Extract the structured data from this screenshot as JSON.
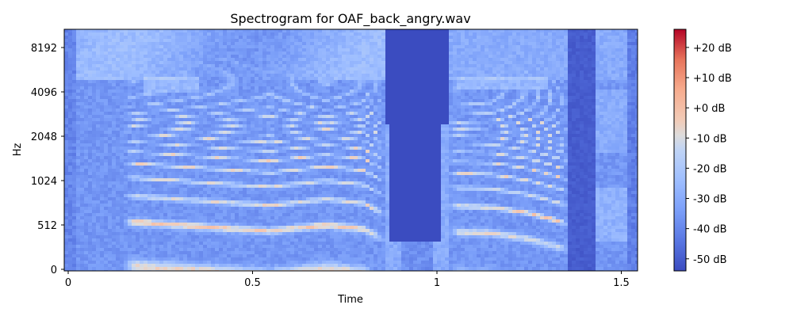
{
  "chart_data": {
    "type": "heatmap",
    "title": "Spectrogram for OAF_back_angry.wav",
    "xlabel": "Time",
    "ylabel": "Hz",
    "xlim": [
      0,
      1.55
    ],
    "x_ticks": [
      {
        "value": 0,
        "label": "0"
      },
      {
        "value": 0.5,
        "label": "0.5"
      },
      {
        "value": 1,
        "label": "1"
      },
      {
        "value": 1.5,
        "label": "1.5"
      }
    ],
    "y_scale": "log",
    "y_ticks": [
      {
        "value": 0,
        "label": "0"
      },
      {
        "value": 512,
        "label": "512"
      },
      {
        "value": 1024,
        "label": "1024"
      },
      {
        "value": 2048,
        "label": "2048"
      },
      {
        "value": 4096,
        "label": "4096"
      },
      {
        "value": 8192,
        "label": "8192"
      }
    ],
    "colorbar": {
      "range_db": [
        -54,
        26
      ],
      "ticks": [
        {
          "value": 20,
          "label": "+20 dB"
        },
        {
          "value": 10,
          "label": "+10 dB"
        },
        {
          "value": 0,
          "label": "+0 dB"
        },
        {
          "value": -10,
          "label": "-10 dB"
        },
        {
          "value": -20,
          "label": "-20 dB"
        },
        {
          "value": -30,
          "label": "-30 dB"
        },
        {
          "value": -40,
          "label": "-40 dB"
        },
        {
          "value": -50,
          "label": "-50 dB"
        }
      ],
      "colormap": "coolwarm"
    },
    "colors": {
      "low": "#3b4cc0",
      "mid": "#dddddd",
      "high": "#b40426"
    },
    "segments": {
      "voiced_1": [
        0.15,
        0.86
      ],
      "silence": [
        0.86,
        1.03
      ],
      "voiced_2": [
        1.03,
        1.36
      ],
      "tail": [
        1.43,
        1.52
      ]
    },
    "pitch_contour_hz": [
      {
        "t": 0.15,
        "f0": 270
      },
      {
        "t": 0.3,
        "f0": 255
      },
      {
        "t": 0.45,
        "f0": 240
      },
      {
        "t": 0.55,
        "f0": 232
      },
      {
        "t": 0.7,
        "f0": 255
      },
      {
        "t": 0.8,
        "f0": 240
      },
      {
        "t": 0.86,
        "f0": 200
      },
      {
        "t": 1.03,
        "f0": 230
      },
      {
        "t": 1.15,
        "f0": 225
      },
      {
        "t": 1.25,
        "f0": 205
      },
      {
        "t": 1.35,
        "f0": 175
      }
    ]
  }
}
